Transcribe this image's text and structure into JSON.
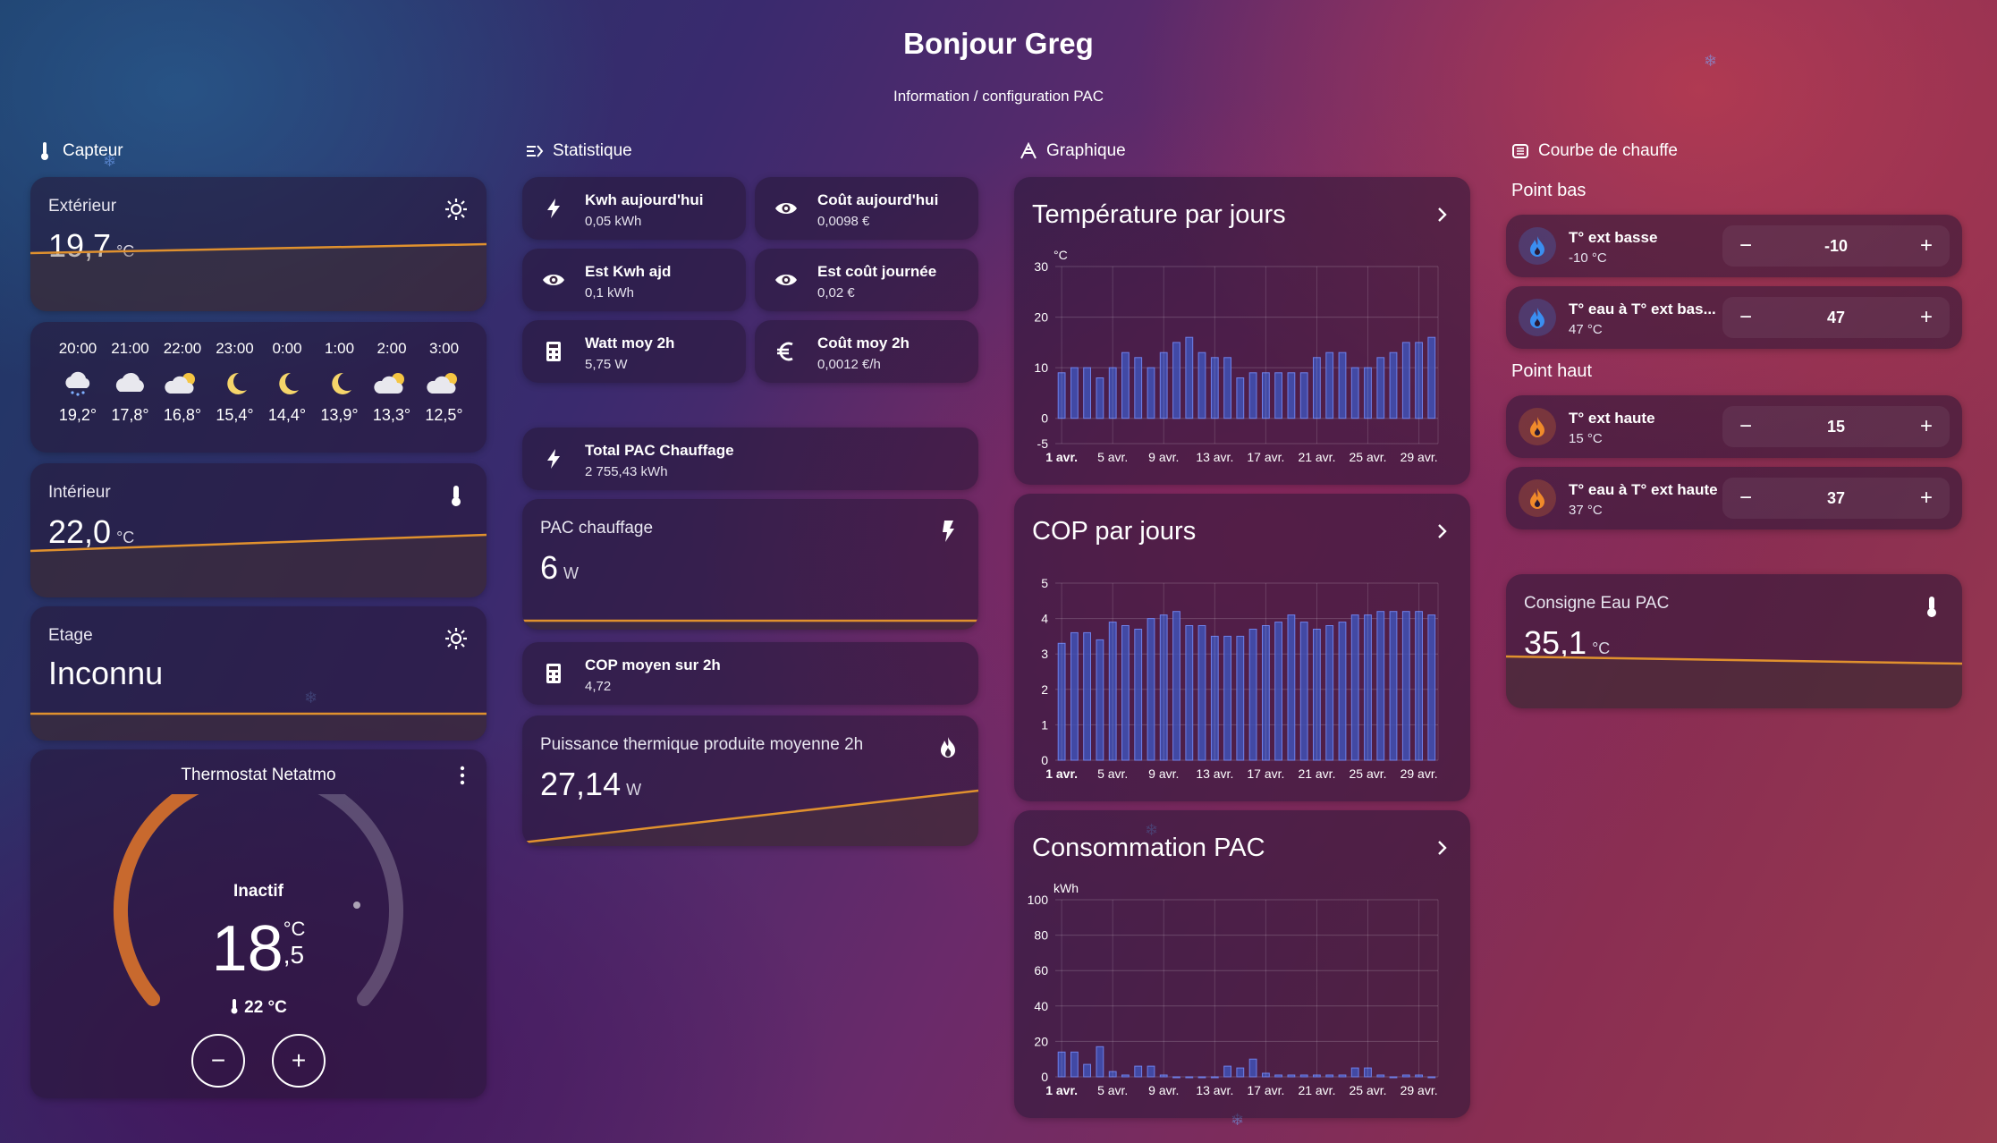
{
  "header": {
    "title": "Bonjour Greg",
    "subtitle": "Information / configuration PAC"
  },
  "columns": {
    "capteur": "Capteur",
    "statistique": "Statistique",
    "graphique": "Graphique",
    "courbe": "Courbe de chauffe"
  },
  "capteur": {
    "exterieur": {
      "name": "Extérieur",
      "value": "19,7",
      "unit": "°C",
      "icon": "sun-icon"
    },
    "interieur": {
      "name": "Intérieur",
      "value": "22,0",
      "unit": "°C",
      "icon": "thermometer-icon"
    },
    "etage": {
      "name": "Etage",
      "value": "Inconnu",
      "icon": "sun-icon"
    },
    "forecast": [
      {
        "time": "20:00",
        "icon": "cloud-rain-icon",
        "temp": "19,2°"
      },
      {
        "time": "21:00",
        "icon": "cloud-icon",
        "temp": "17,8°"
      },
      {
        "time": "22:00",
        "icon": "partly-cloudy-icon",
        "temp": "16,8°"
      },
      {
        "time": "23:00",
        "icon": "moon-icon",
        "temp": "15,4°"
      },
      {
        "time": "0:00",
        "icon": "moon-icon",
        "temp": "14,4°"
      },
      {
        "time": "1:00",
        "icon": "moon-icon",
        "temp": "13,9°"
      },
      {
        "time": "2:00",
        "icon": "partly-cloudy-icon",
        "temp": "13,3°"
      },
      {
        "time": "3:00",
        "icon": "partly-cloudy-icon",
        "temp": "12,5°"
      }
    ],
    "thermostat": {
      "name": "Thermostat Netatmo",
      "state": "Inactif",
      "setpoint_int": "18",
      "setpoint_dec": ",5",
      "unit": "°C",
      "current": "22 °C",
      "level": 0.55
    }
  },
  "statistique": {
    "kwh_today": {
      "name": "Kwh aujourd'hui",
      "value": "0,05 kWh",
      "icon": "bolt-icon"
    },
    "cost_today": {
      "name": "Coût aujourd'hui",
      "value": "0,0098 €",
      "icon": "eye-icon"
    },
    "est_kwh": {
      "name": "Est Kwh ajd",
      "value": "0,1 kWh",
      "icon": "eye-icon"
    },
    "est_cost": {
      "name": "Est coût journée",
      "value": "0,02 €",
      "icon": "eye-icon"
    },
    "watt_2h": {
      "name": "Watt moy 2h",
      "value": "5,75 W",
      "icon": "calculator-icon"
    },
    "cost_2h": {
      "name": "Coût moy 2h",
      "value": "0,0012 €/h",
      "icon": "euro-icon"
    },
    "total_pac": {
      "name": "Total PAC Chauffage",
      "value": "2 755,43 kWh",
      "icon": "bolt-icon"
    },
    "pac_chauffage": {
      "name": "PAC chauffage",
      "value": "6",
      "unit": "W",
      "icon": "flash-icon"
    },
    "cop_2h": {
      "name": "COP moyen sur 2h",
      "value": "4,72",
      "icon": "calculator-icon"
    },
    "thermal": {
      "name": "Puissance thermique produite moyenne 2h",
      "value": "27,14",
      "unit": "W",
      "icon": "fire-icon"
    }
  },
  "graphique": {
    "temp_title": "Température par jours",
    "cop_title": "COP par jours",
    "conso_title": "Consommation PAC"
  },
  "chart_data": [
    {
      "type": "bar",
      "title": "Température par jours",
      "ylabel": "°C",
      "ylim": [
        -5,
        30
      ],
      "yticks": [
        "30",
        "20",
        "10",
        "0",
        "-5"
      ],
      "xticks": [
        "1 avr.",
        "5 avr.",
        "9 avr.",
        "13 avr.",
        "17 avr.",
        "21 avr.",
        "25 avr.",
        "29 avr."
      ],
      "categories": [
        "1",
        "2",
        "3",
        "4",
        "5",
        "6",
        "7",
        "8",
        "9",
        "10",
        "11",
        "12",
        "13",
        "14",
        "15",
        "16",
        "17",
        "18",
        "19",
        "20",
        "21",
        "22",
        "23",
        "24",
        "25",
        "26",
        "27",
        "28",
        "29",
        "30"
      ],
      "values": [
        9,
        10,
        10,
        8,
        10,
        13,
        12,
        10,
        13,
        15,
        16,
        13,
        12,
        12,
        8,
        9,
        9,
        9,
        9,
        9,
        12,
        13,
        13,
        10,
        10,
        12,
        13,
        15,
        15,
        16
      ],
      "color": "#3f51b5"
    },
    {
      "type": "bar",
      "title": "COP par jours",
      "ylabel": "",
      "ylim": [
        0,
        5
      ],
      "yticks": [
        "5",
        "4",
        "3",
        "2",
        "1",
        "0"
      ],
      "xticks": [
        "1 avr.",
        "5 avr.",
        "9 avr.",
        "13 avr.",
        "17 avr.",
        "21 avr.",
        "25 avr.",
        "29 avr."
      ],
      "categories": [
        "1",
        "2",
        "3",
        "4",
        "5",
        "6",
        "7",
        "8",
        "9",
        "10",
        "11",
        "12",
        "13",
        "14",
        "15",
        "16",
        "17",
        "18",
        "19",
        "20",
        "21",
        "22",
        "23",
        "24",
        "25",
        "26",
        "27",
        "28",
        "29",
        "30"
      ],
      "values": [
        3.3,
        3.6,
        3.6,
        3.4,
        3.9,
        3.8,
        3.7,
        4.0,
        4.1,
        4.2,
        3.8,
        3.8,
        3.5,
        3.5,
        3.5,
        3.7,
        3.8,
        3.9,
        4.1,
        3.9,
        3.7,
        3.8,
        3.9,
        4.1,
        4.1,
        4.2,
        4.2,
        4.2,
        4.2,
        4.1
      ],
      "color": "#3f51b5"
    },
    {
      "type": "bar",
      "title": "Consommation PAC",
      "ylabel": "kWh",
      "ylim": [
        0,
        100
      ],
      "yticks": [
        "100",
        "80",
        "60",
        "40",
        "20",
        "0"
      ],
      "xticks": [
        "1 avr.",
        "5 avr.",
        "9 avr.",
        "13 avr.",
        "17 avr.",
        "21 avr.",
        "25 avr.",
        "29 avr."
      ],
      "categories": [
        "1",
        "2",
        "3",
        "4",
        "5",
        "6",
        "7",
        "8",
        "9",
        "10",
        "11",
        "12",
        "13",
        "14",
        "15",
        "16",
        "17",
        "18",
        "19",
        "20",
        "21",
        "22",
        "23",
        "24",
        "25",
        "26",
        "27",
        "28",
        "29",
        "30"
      ],
      "values": [
        14,
        14,
        7,
        17,
        3,
        1,
        6,
        6,
        1,
        0,
        0,
        0,
        0,
        6,
        5,
        10,
        2,
        1,
        1,
        1,
        1,
        1,
        1,
        5,
        5,
        1,
        0,
        1,
        1,
        0
      ],
      "color": "#3f51b5"
    }
  ],
  "courbe": {
    "point_bas_label": "Point bas",
    "point_haut_label": "Point haut",
    "rows": [
      {
        "name": "T° ext basse",
        "value": "-10 °C",
        "setting": "-10",
        "kind": "cold"
      },
      {
        "name": "T° eau à T° ext bas...",
        "value": "47 °C",
        "setting": "47",
        "kind": "cold"
      },
      {
        "name": "T° ext haute",
        "value": "15 °C",
        "setting": "15",
        "kind": "hot"
      },
      {
        "name": "T° eau à T° ext haute",
        "value": "37 °C",
        "setting": "37",
        "kind": "hot"
      }
    ],
    "stepper_minus": "−",
    "stepper_plus": "+",
    "consigne": {
      "name": "Consigne Eau PAC",
      "value": "35,1",
      "unit": "°C",
      "icon": "thermometer-icon"
    }
  },
  "colors": {
    "accent_line": "#e0912e",
    "bar": "#3f51b5",
    "thermo_arc": "#c8692e"
  }
}
